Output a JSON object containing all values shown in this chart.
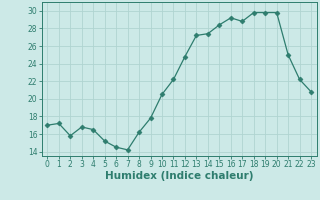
{
  "x": [
    0,
    1,
    2,
    3,
    4,
    5,
    6,
    7,
    8,
    9,
    10,
    11,
    12,
    13,
    14,
    15,
    16,
    17,
    18,
    19,
    20,
    21,
    22,
    23
  ],
  "y": [
    17,
    17.2,
    15.8,
    16.8,
    16.5,
    15.2,
    14.5,
    14.2,
    16.2,
    17.8,
    20.5,
    22.2,
    24.8,
    27.2,
    27.4,
    28.4,
    29.2,
    28.8,
    29.8,
    29.8,
    29.8,
    25.0,
    22.2,
    20.8
  ],
  "line_color": "#2e7d6e",
  "marker": "D",
  "marker_size": 2.5,
  "bg_color": "#cce9e7",
  "grid_color": "#b0d4d1",
  "xlabel": "Humidex (Indice chaleur)",
  "xlim": [
    -0.5,
    23.5
  ],
  "ylim": [
    13.5,
    31
  ],
  "yticks": [
    14,
    16,
    18,
    20,
    22,
    24,
    26,
    28,
    30
  ],
  "xticks": [
    0,
    1,
    2,
    3,
    4,
    5,
    6,
    7,
    8,
    9,
    10,
    11,
    12,
    13,
    14,
    15,
    16,
    17,
    18,
    19,
    20,
    21,
    22,
    23
  ],
  "tick_labelsize": 5.5,
  "xlabel_fontsize": 7.5,
  "xlabel_fontweight": "bold"
}
